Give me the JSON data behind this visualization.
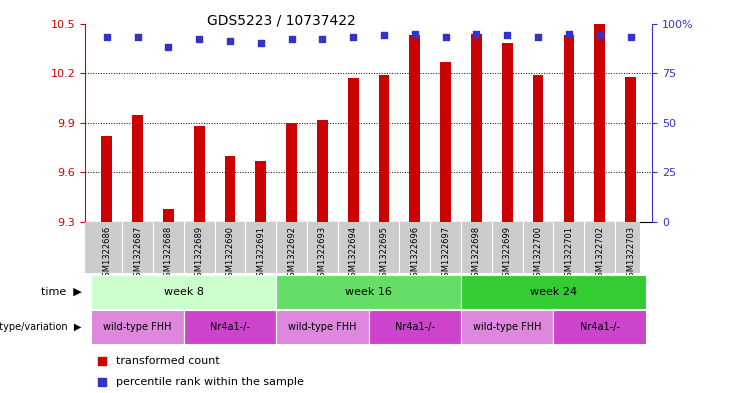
{
  "title": "GDS5223 / 10737422",
  "samples": [
    "GSM1322686",
    "GSM1322687",
    "GSM1322688",
    "GSM1322689",
    "GSM1322690",
    "GSM1322691",
    "GSM1322692",
    "GSM1322693",
    "GSM1322694",
    "GSM1322695",
    "GSM1322696",
    "GSM1322697",
    "GSM1322698",
    "GSM1322699",
    "GSM1322700",
    "GSM1322701",
    "GSM1322702",
    "GSM1322703"
  ],
  "bar_values": [
    9.82,
    9.95,
    9.38,
    9.88,
    9.7,
    9.67,
    9.9,
    9.92,
    10.17,
    10.19,
    10.43,
    10.27,
    10.44,
    10.38,
    10.19,
    10.43,
    10.5,
    10.18
  ],
  "percentile_values": [
    93,
    93,
    88,
    92,
    91,
    90,
    92,
    92,
    93,
    94,
    95,
    93,
    95,
    94,
    93,
    95,
    94,
    93
  ],
  "ylim_left": [
    9.3,
    10.5
  ],
  "ylim_right": [
    0,
    100
  ],
  "yticks_left": [
    9.3,
    9.6,
    9.9,
    10.2,
    10.5
  ],
  "yticks_right": [
    0,
    25,
    50,
    75,
    100
  ],
  "bar_color": "#cc0000",
  "dot_color": "#3333cc",
  "bar_width": 0.35,
  "gridlines": [
    9.6,
    9.9,
    10.2
  ],
  "time_groups": [
    {
      "label": "week 8",
      "start": 0,
      "end": 5,
      "color": "#ccffcc"
    },
    {
      "label": "week 16",
      "start": 6,
      "end": 11,
      "color": "#66dd66"
    },
    {
      "label": "week 24",
      "start": 12,
      "end": 17,
      "color": "#33cc33"
    }
  ],
  "genotype_groups": [
    {
      "label": "wild-type FHH",
      "start": 0,
      "end": 2,
      "color": "#dd88dd"
    },
    {
      "label": "Nr4a1-/-",
      "start": 3,
      "end": 5,
      "color": "#cc44cc"
    },
    {
      "label": "wild-type FHH",
      "start": 6,
      "end": 8,
      "color": "#dd88dd"
    },
    {
      "label": "Nr4a1-/-",
      "start": 9,
      "end": 11,
      "color": "#cc44cc"
    },
    {
      "label": "wild-type FHH",
      "start": 12,
      "end": 14,
      "color": "#dd88dd"
    },
    {
      "label": "Nr4a1-/-",
      "start": 15,
      "end": 17,
      "color": "#cc44cc"
    }
  ],
  "legend_items": [
    {
      "label": "transformed count",
      "color": "#cc0000"
    },
    {
      "label": "percentile rank within the sample",
      "color": "#3333cc"
    }
  ],
  "bg_color": "#ffffff",
  "tick_color_left": "#cc0000",
  "tick_color_right": "#3333cc",
  "sample_bg_color": "#cccccc"
}
